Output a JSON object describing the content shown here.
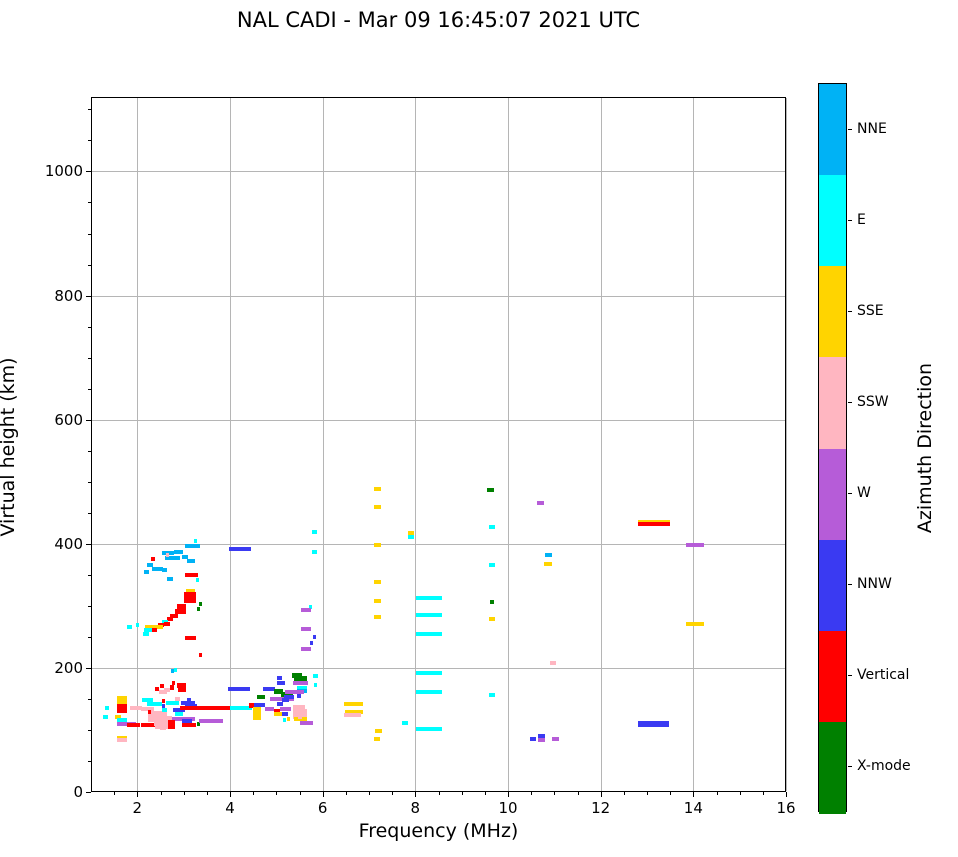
{
  "title": "NAL CADI - Mar 09 16:45:07 2021 UTC",
  "chart_data": {
    "type": "scatter",
    "title": "NAL CADI - Mar 09 16:45:07 2021 UTC",
    "xlabel": "Frequency (MHz)",
    "ylabel": "Virtual height (km)",
    "xlim": [
      1,
      16
    ],
    "ylim": [
      0,
      1120
    ],
    "x_major_ticks": [
      2,
      4,
      6,
      8,
      10,
      12,
      14,
      16
    ],
    "x_minor_step": 0.5,
    "y_major_ticks": [
      0,
      200,
      400,
      600,
      800,
      1000
    ],
    "y_minor_step": 50,
    "grid": true,
    "legend_position": "right-colorbar",
    "colorbar": {
      "label": "Azimuth Direction",
      "categories": [
        {
          "name": "NNE",
          "color": "#00b2f5"
        },
        {
          "name": "E",
          "color": "#00ffff"
        },
        {
          "name": "SSE",
          "color": "#ffd400"
        },
        {
          "name": "SSW",
          "color": "#ffb6c1"
        },
        {
          "name": "W",
          "color": "#b65cd8"
        },
        {
          "name": "NNW",
          "color": "#3a3af2"
        },
        {
          "name": "Vertical",
          "color": "#ff0000"
        },
        {
          "name": "X-mode",
          "color": "#008000"
        }
      ]
    },
    "point_colors": {
      "nne": "#00b2f5",
      "e": "#00ffff",
      "sse": "#ffd400",
      "ssw": "#ffb6c1",
      "w": "#b65cd8",
      "nnw": "#3a3af2",
      "v": "#ff0000",
      "x": "#008000"
    },
    "points_format": [
      "freq_MHz",
      "height_km",
      "azimuth_key",
      "width_MHz",
      "px_height_optional"
    ],
    "points": [
      [
        3.0,
        398,
        "nne",
        0.33
      ],
      [
        3.2,
        406,
        "e",
        0.07
      ],
      [
        2.5,
        386,
        "nne",
        0.28
      ],
      [
        2.78,
        389,
        "nne",
        0.18
      ],
      [
        2.57,
        379,
        "nne",
        0.33
      ],
      [
        2.95,
        381,
        "nne",
        0.13
      ],
      [
        3.05,
        374,
        "nne",
        0.18
      ],
      [
        2.28,
        377,
        "v",
        0.07
      ],
      [
        2.6,
        383,
        "ssw",
        0.07
      ],
      [
        2.18,
        368,
        "nne",
        0.13
      ],
      [
        2.3,
        361,
        "nne",
        0.24
      ],
      [
        2.12,
        356,
        "nne",
        0.1
      ],
      [
        2.52,
        359,
        "nne",
        0.1
      ],
      [
        2.62,
        345,
        "nne",
        0.13
      ],
      [
        3.25,
        344,
        "e",
        0.07
      ],
      [
        3.0,
        352,
        "v",
        0.28
      ],
      [
        3.02,
        326,
        "sse",
        0.2
      ],
      [
        2.98,
        319,
        "v",
        0.26,
        6
      ],
      [
        2.99,
        311,
        "v",
        0.26,
        6
      ],
      [
        3.3,
        304,
        "x",
        0.07
      ],
      [
        3.27,
        297,
        "x",
        0.07
      ],
      [
        2.83,
        301,
        "v",
        0.2,
        5
      ],
      [
        2.8,
        293,
        "v",
        0.22,
        5
      ],
      [
        2.68,
        286,
        "v",
        0.18
      ],
      [
        2.62,
        280,
        "v",
        0.13
      ],
      [
        2.5,
        276,
        "e",
        0.15
      ],
      [
        2.55,
        272,
        "v",
        0.13
      ],
      [
        2.42,
        270,
        "v",
        0.13
      ],
      [
        2.33,
        268,
        "sse",
        0.2
      ],
      [
        2.15,
        268,
        "sse",
        0.22
      ],
      [
        2.12,
        263,
        "e",
        0.2
      ],
      [
        2.3,
        262,
        "v",
        0.1
      ],
      [
        2.1,
        257,
        "e",
        0.13
      ],
      [
        1.76,
        268,
        "e",
        0.1
      ],
      [
        1.95,
        271,
        "e",
        0.06
      ],
      [
        3.0,
        250,
        "v",
        0.24
      ],
      [
        3.3,
        222,
        "v",
        0.05
      ],
      [
        3.95,
        394,
        "nnw",
        0.48
      ],
      [
        5.75,
        420,
        "e",
        0.1
      ],
      [
        5.75,
        389,
        "e",
        0.1
      ],
      [
        5.68,
        300,
        "e",
        0.07
      ],
      [
        5.52,
        295,
        "w",
        0.2
      ],
      [
        5.52,
        264,
        "w",
        0.2
      ],
      [
        5.77,
        252,
        "nnw",
        0.07
      ],
      [
        5.7,
        241,
        "nnw",
        0.05
      ],
      [
        5.52,
        232,
        "w",
        0.2
      ],
      [
        7.08,
        490,
        "sse",
        0.16
      ],
      [
        7.08,
        461,
        "sse",
        0.16
      ],
      [
        7.08,
        400,
        "sse",
        0.16
      ],
      [
        7.08,
        340,
        "sse",
        0.16
      ],
      [
        7.08,
        310,
        "sse",
        0.16
      ],
      [
        7.08,
        283,
        "sse",
        0.16
      ],
      [
        7.82,
        419,
        "sse",
        0.12
      ],
      [
        7.82,
        413,
        "e",
        0.13
      ],
      [
        8.0,
        315,
        "e",
        0.56
      ],
      [
        8.0,
        287,
        "e",
        0.56
      ],
      [
        8.0,
        257,
        "e",
        0.56
      ],
      [
        8.0,
        193,
        "e",
        0.56
      ],
      [
        8.0,
        163,
        "e",
        0.56
      ],
      [
        8.0,
        103,
        "e",
        0.56
      ],
      [
        7.7,
        113,
        "e",
        0.12
      ],
      [
        9.53,
        488,
        "x",
        0.14
      ],
      [
        9.57,
        428,
        "e",
        0.12
      ],
      [
        9.57,
        368,
        "e",
        0.12
      ],
      [
        9.58,
        308,
        "x",
        0.1
      ],
      [
        9.57,
        280,
        "sse",
        0.12
      ],
      [
        9.57,
        158,
        "e",
        0.12
      ],
      [
        10.6,
        468,
        "w",
        0.15
      ],
      [
        10.78,
        384,
        "nne",
        0.15
      ],
      [
        10.75,
        369,
        "sse",
        0.17
      ],
      [
        10.88,
        210,
        "ssw",
        0.14
      ],
      [
        10.45,
        87,
        "nnw",
        0.13
      ],
      [
        10.62,
        91,
        "nnw",
        0.15,
        5
      ],
      [
        10.63,
        85,
        "w",
        0.14
      ],
      [
        10.93,
        87,
        "w",
        0.15
      ],
      [
        12.78,
        437,
        "sse",
        0.7
      ],
      [
        12.78,
        433,
        "v",
        0.7
      ],
      [
        12.78,
        112,
        "nnw",
        0.68,
        6
      ],
      [
        13.82,
        400,
        "w",
        0.38
      ],
      [
        13.82,
        273,
        "sse",
        0.38
      ],
      [
        1.27,
        137,
        "e",
        0.1
      ],
      [
        1.24,
        122,
        "e",
        0.1
      ],
      [
        1.55,
        152,
        "sse",
        0.2,
        5
      ],
      [
        1.55,
        146,
        "sse",
        0.2,
        5
      ],
      [
        1.55,
        139,
        "v",
        0.2,
        5
      ],
      [
        1.55,
        133,
        "v",
        0.2,
        5
      ],
      [
        1.82,
        137,
        "ssw",
        0.25
      ],
      [
        2.05,
        135,
        "ssw",
        0.28
      ],
      [
        1.5,
        122,
        "sse",
        0.12
      ],
      [
        1.55,
        117,
        "e",
        0.2
      ],
      [
        1.53,
        112,
        "w",
        0.42
      ],
      [
        1.75,
        109,
        "v",
        0.28
      ],
      [
        2.05,
        110,
        "v",
        0.48
      ],
      [
        1.55,
        89,
        "sse",
        0.2
      ],
      [
        1.55,
        85,
        "ssw",
        0.2
      ],
      [
        2.08,
        150,
        "e",
        0.24
      ],
      [
        2.18,
        143,
        "e",
        0.33
      ],
      [
        2.35,
        168,
        "v",
        0.1
      ],
      [
        2.47,
        172,
        "v",
        0.08
      ],
      [
        2.68,
        170,
        "v",
        0.1,
        5
      ],
      [
        2.72,
        178,
        "v",
        0.06
      ],
      [
        2.7,
        196,
        "nne",
        0.06
      ],
      [
        2.77,
        198,
        "e",
        0.05
      ],
      [
        2.45,
        163,
        "ssw",
        0.16
      ],
      [
        2.56,
        166,
        "ssw",
        0.12
      ],
      [
        2.83,
        173,
        "v",
        0.2,
        5
      ],
      [
        2.85,
        166,
        "v",
        0.18
      ],
      [
        2.2,
        127,
        "ssw",
        0.42,
        6
      ],
      [
        2.2,
        120,
        "ssw",
        0.52,
        6
      ],
      [
        2.33,
        113,
        "ssw",
        0.4,
        6
      ],
      [
        2.37,
        107,
        "ssw",
        0.28
      ],
      [
        2.2,
        131,
        "v",
        0.08
      ],
      [
        2.5,
        148,
        "v",
        0.07
      ],
      [
        2.5,
        141,
        "nnw",
        0.07
      ],
      [
        2.52,
        134,
        "e",
        0.1
      ],
      [
        2.6,
        145,
        "e",
        0.28
      ],
      [
        2.92,
        145,
        "nnw",
        0.3
      ],
      [
        3.05,
        150,
        "nnw",
        0.08
      ],
      [
        3.0,
        140,
        "nnw",
        0.26
      ],
      [
        2.75,
        133,
        "nnw",
        0.26
      ],
      [
        2.8,
        127,
        "e",
        0.16
      ],
      [
        2.9,
        137,
        "v",
        1.08
      ],
      [
        3.98,
        137,
        "e",
        0.48
      ],
      [
        2.73,
        120,
        "w",
        0.5
      ],
      [
        2.95,
        116,
        "nnw",
        0.2
      ],
      [
        2.63,
        113,
        "v",
        0.16,
        5
      ],
      [
        2.63,
        107,
        "v",
        0.16,
        5
      ],
      [
        2.95,
        110,
        "v",
        0.3
      ],
      [
        3.27,
        111,
        "x",
        0.07
      ],
      [
        3.3,
        116,
        "w",
        0.52
      ],
      [
        2.47,
        110,
        "ssw",
        0.12,
        5
      ],
      [
        2.47,
        104,
        "ssw",
        0.12
      ],
      [
        2.8,
        152,
        "ssw",
        0.1
      ],
      [
        4.38,
        141,
        "v",
        0.12,
        5
      ],
      [
        4.47,
        122,
        "sse",
        0.17,
        5
      ],
      [
        4.47,
        128,
        "sse",
        0.17,
        5
      ],
      [
        4.47,
        135,
        "sse",
        0.17,
        5
      ],
      [
        4.5,
        142,
        "nnw",
        0.24
      ],
      [
        4.57,
        155,
        "x",
        0.16
      ],
      [
        4.68,
        168,
        "nnw",
        0.26
      ],
      [
        5.0,
        186,
        "nnw",
        0.1
      ],
      [
        5.32,
        190,
        "x",
        0.22,
        5
      ],
      [
        5.35,
        184,
        "x",
        0.3,
        5
      ],
      [
        5.33,
        177,
        "w",
        0.33
      ],
      [
        5.0,
        178,
        "nnw",
        0.16
      ],
      [
        4.93,
        163,
        "x",
        0.2,
        5
      ],
      [
        5.08,
        158,
        "x",
        0.25,
        5
      ],
      [
        5.43,
        170,
        "e",
        0.2
      ],
      [
        5.43,
        164,
        "nne",
        0.22
      ],
      [
        4.85,
        152,
        "w",
        0.5
      ],
      [
        5.17,
        162,
        "w",
        0.4
      ],
      [
        5.0,
        144,
        "nnw",
        0.13
      ],
      [
        5.33,
        138,
        "ssw",
        0.26,
        5
      ],
      [
        5.33,
        131,
        "ssw",
        0.3,
        6
      ],
      [
        5.33,
        124,
        "ssw",
        0.3,
        5
      ],
      [
        5.36,
        119,
        "sse",
        0.28
      ],
      [
        4.73,
        135,
        "w",
        0.2
      ],
      [
        5.05,
        135,
        "w",
        0.24
      ],
      [
        4.93,
        132,
        "v",
        0.12
      ],
      [
        4.92,
        128,
        "sse",
        0.17
      ],
      [
        5.1,
        127,
        "nnw",
        0.12
      ],
      [
        5.2,
        120,
        "sse",
        0.07
      ],
      [
        5.12,
        117,
        "e",
        0.07
      ],
      [
        5.78,
        188,
        "e",
        0.1
      ],
      [
        5.8,
        174,
        "e",
        0.06
      ],
      [
        5.48,
        113,
        "w",
        0.28
      ],
      [
        5.15,
        155,
        "nnw",
        0.2
      ],
      [
        5.1,
        150,
        "nnw",
        0.15
      ],
      [
        5.45,
        138,
        "ssw",
        0.09,
        5
      ],
      [
        5.45,
        131,
        "ssw",
        0.09,
        5
      ],
      [
        5.45,
        124,
        "ssw",
        0.09,
        5
      ],
      [
        5.42,
        157,
        "nnw",
        0.09
      ],
      [
        3.93,
        167,
        "nnw",
        0.48
      ],
      [
        6.44,
        143,
        "sse",
        0.4
      ],
      [
        6.46,
        130,
        "sse",
        0.38
      ],
      [
        6.44,
        125,
        "ssw",
        0.36
      ],
      [
        7.1,
        100,
        "sse",
        0.15
      ],
      [
        7.08,
        87,
        "sse",
        0.13
      ]
    ]
  }
}
